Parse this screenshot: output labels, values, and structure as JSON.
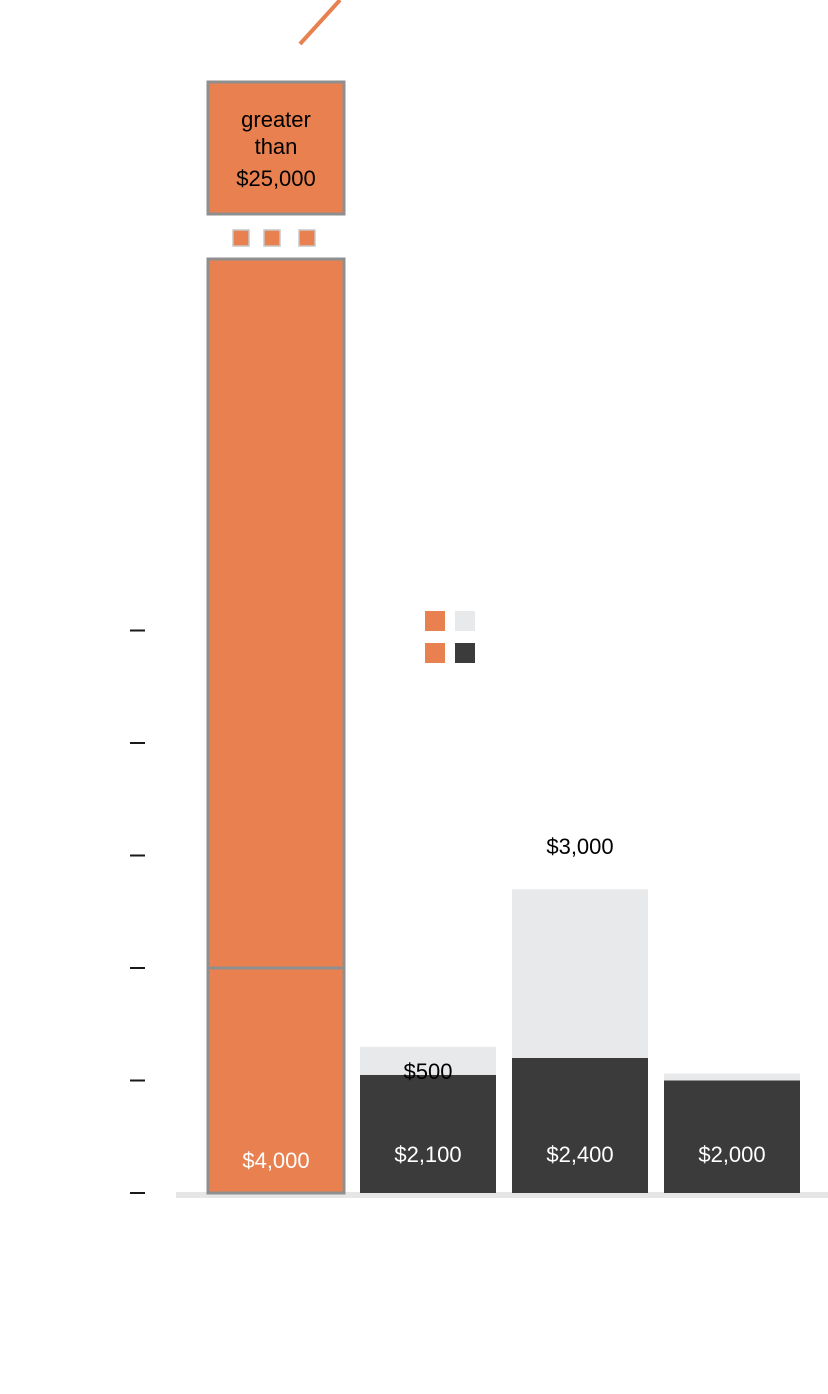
{
  "chart_data": {
    "type": "bar",
    "stacked": true,
    "categories": [
      "",
      "",
      "",
      ""
    ],
    "series": [
      {
        "name": "",
        "values": [
          4000,
          2100,
          2400,
          2000
        ]
      },
      {
        "name": "",
        "values": [
          25000,
          500,
          3000,
          null
        ]
      }
    ],
    "data_labels": {
      "base": [
        "$4,000",
        "$2,100",
        "$2,400",
        "$2,000"
      ],
      "top": [
        "greater than $25,000",
        "$500",
        "$3,000",
        ""
      ]
    },
    "axis_break": true,
    "ylim": [
      0,
      9500
    ],
    "yticks": [
      0,
      2000,
      4000,
      6000,
      8000,
      10000
    ],
    "ytick_labels": [
      "",
      "",
      "",
      "",
      "",
      ""
    ],
    "title": "",
    "xlabel": "",
    "ylabel": "",
    "legend": {
      "title": "",
      "placement": "top-right",
      "entries": [
        "",
        ""
      ]
    },
    "grid": false,
    "colors": {
      "orange": "#e8804f",
      "orange_border": "#8f8f8f",
      "dark": "#3b3b3b",
      "light": "#e8e9ea",
      "axis": "#e6e6e6",
      "label_dark": "#000000",
      "label_light": "#ffffff"
    }
  }
}
